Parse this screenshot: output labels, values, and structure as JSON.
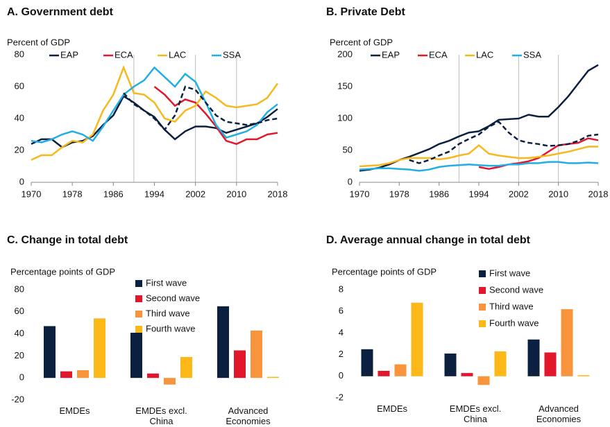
{
  "chart_data": [
    {
      "type": "line",
      "title": "A. Government debt",
      "y_label": "Percent of GDP",
      "legend": "top",
      "x": [
        1970,
        1972,
        1974,
        1976,
        1978,
        1980,
        1982,
        1984,
        1986,
        1988,
        1990,
        1992,
        1994,
        1996,
        1998,
        2000,
        2002,
        2004,
        2006,
        2008,
        2010,
        2012,
        2014,
        2016,
        2018
      ],
      "xlim": [
        1970,
        2018
      ],
      "xticks": [
        1970,
        1978,
        1986,
        1994,
        2002,
        2010,
        2018
      ],
      "ylim": [
        0,
        80
      ],
      "yticks": [
        0,
        20,
        40,
        60,
        80
      ],
      "vlines": [
        1990,
        2002,
        2010
      ],
      "series": [
        {
          "name": "EAP",
          "color": "#0b1f3f",
          "values": [
            24,
            27,
            27,
            22,
            25,
            26,
            29,
            36,
            42,
            54,
            50,
            45,
            41,
            33,
            27,
            32,
            35,
            35,
            34,
            31,
            33,
            35,
            37,
            41,
            46
          ]
        },
        {
          "name": "ECA",
          "color": "#e3172c",
          "values": [
            null,
            null,
            null,
            null,
            null,
            null,
            null,
            null,
            null,
            null,
            null,
            null,
            60,
            55,
            48,
            52,
            50,
            43,
            35,
            26,
            24,
            27,
            27,
            30,
            31
          ]
        },
        {
          "name": "LAC",
          "color": "#f6b81c",
          "values": [
            14,
            17,
            17,
            22,
            26,
            25,
            30,
            45,
            55,
            72,
            56,
            55,
            50,
            40,
            38,
            45,
            48,
            57,
            53,
            48,
            47,
            48,
            49,
            53,
            62
          ]
        },
        {
          "name": "SSA",
          "color": "#22aee4",
          "values": [
            26,
            25,
            27,
            30,
            32,
            30,
            26,
            35,
            45,
            55,
            60,
            64,
            72,
            66,
            60,
            68,
            63,
            50,
            36,
            28,
            30,
            32,
            36,
            44,
            49
          ]
        },
        {
          "color": "#0b1f3f",
          "dashed": true,
          "values": [
            null,
            null,
            null,
            null,
            null,
            null,
            null,
            null,
            null,
            56,
            49,
            45,
            40,
            33,
            42,
            60,
            58,
            50,
            42,
            38,
            37,
            36,
            37,
            39,
            40
          ]
        }
      ]
    },
    {
      "type": "line",
      "title": "B. Private Debt",
      "y_label": "Percent of GDP",
      "legend": "top",
      "x": [
        1970,
        1972,
        1974,
        1976,
        1978,
        1980,
        1982,
        1984,
        1986,
        1988,
        1990,
        1992,
        1994,
        1996,
        1998,
        2000,
        2002,
        2004,
        2006,
        2008,
        2010,
        2012,
        2014,
        2016,
        2018
      ],
      "xlim": [
        1970,
        2018
      ],
      "xticks": [
        1970,
        1978,
        1986,
        1994,
        2002,
        2010,
        2018
      ],
      "ylim": [
        0,
        200
      ],
      "yticks": [
        0,
        50,
        100,
        150,
        200
      ],
      "vlines": [
        1990,
        2002,
        2010
      ],
      "series": [
        {
          "name": "EAP",
          "color": "#0b1f3f",
          "values": [
            18,
            20,
            23,
            28,
            35,
            40,
            46,
            52,
            60,
            65,
            72,
            78,
            80,
            88,
            98,
            99,
            100,
            106,
            103,
            103,
            118,
            135,
            155,
            175,
            184
          ]
        },
        {
          "name": "ECA",
          "color": "#e3172c",
          "values": [
            null,
            null,
            null,
            null,
            null,
            null,
            null,
            null,
            null,
            null,
            null,
            null,
            24,
            21,
            24,
            28,
            30,
            33,
            38,
            48,
            58,
            60,
            62,
            69,
            66
          ]
        },
        {
          "name": "LAC",
          "color": "#f6b81c",
          "values": [
            25,
            26,
            27,
            30,
            35,
            38,
            38,
            38,
            36,
            38,
            42,
            45,
            58,
            45,
            42,
            40,
            38,
            38,
            40,
            42,
            45,
            48,
            52,
            56,
            56
          ]
        },
        {
          "name": "SSA",
          "color": "#22aee4",
          "values": [
            20,
            21,
            22,
            22,
            21,
            20,
            18,
            20,
            24,
            26,
            27,
            28,
            27,
            26,
            26,
            28,
            28,
            30,
            30,
            32,
            32,
            30,
            30,
            31,
            30
          ]
        },
        {
          "color": "#0b1f3f",
          "dashed": true,
          "values": [
            null,
            null,
            null,
            null,
            null,
            35,
            30,
            35,
            42,
            48,
            60,
            68,
            75,
            87,
            95,
            78,
            66,
            62,
            60,
            57,
            58,
            60,
            65,
            73,
            75
          ]
        }
      ]
    },
    {
      "type": "bar",
      "title": "C. Change in total debt",
      "y_label": "Percentage points of GDP",
      "legend": "top",
      "categories": [
        "EMDEs",
        "EMDEs excl. China",
        "Advanced Economies"
      ],
      "ylim": [
        -20,
        80
      ],
      "yticks": [
        -20,
        0,
        20,
        40,
        60,
        80
      ],
      "series": [
        {
          "name": "First wave",
          "color": "#0b1f3f",
          "values": [
            47,
            41,
            65
          ]
        },
        {
          "name": "Second wave",
          "color": "#e3172c",
          "values": [
            6,
            4,
            25
          ]
        },
        {
          "name": "Third wave",
          "color": "#f7943c",
          "values": [
            7,
            -6,
            43
          ]
        },
        {
          "name": "Fourth wave",
          "color": "#fbb817",
          "values": [
            54,
            19,
            1
          ]
        }
      ]
    },
    {
      "type": "bar",
      "title": "D. Average annual change in total debt",
      "y_label": "Percentage points of GDP",
      "legend": "top",
      "categories": [
        "EMDEs",
        "EMDEs excl. China",
        "Advanced Economies"
      ],
      "ylim": [
        -2,
        8
      ],
      "yticks": [
        -2,
        0,
        2,
        4,
        6,
        8
      ],
      "series": [
        {
          "name": "First wave",
          "color": "#0b1f3f",
          "values": [
            2.5,
            2.1,
            3.4
          ]
        },
        {
          "name": "Second wave",
          "color": "#e3172c",
          "values": [
            0.5,
            0.3,
            2.2
          ]
        },
        {
          "name": "Third wave",
          "color": "#f7943c",
          "values": [
            1.1,
            -0.8,
            6.2
          ]
        },
        {
          "name": "Fourth wave",
          "color": "#fbb817",
          "values": [
            6.8,
            2.3,
            0.1
          ]
        }
      ]
    }
  ]
}
